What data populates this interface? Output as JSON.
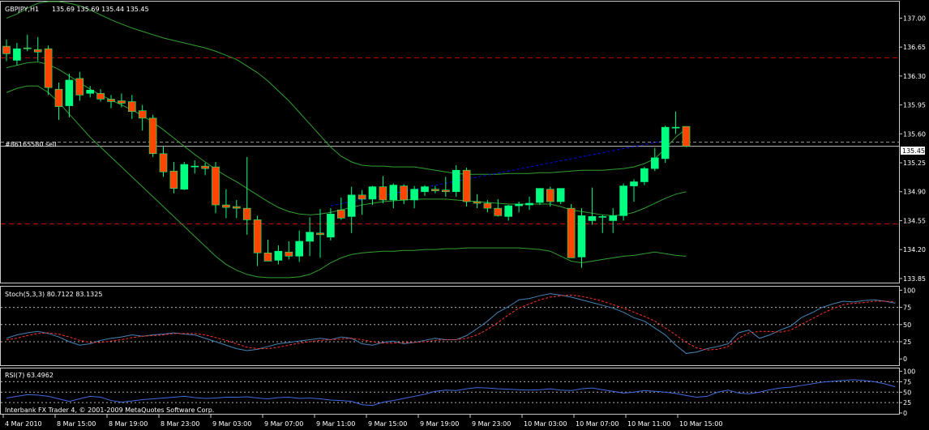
{
  "header": {
    "symbol": "GBPJPY,H1",
    "ohlc": "135.69 135.69 135.44 135.45"
  },
  "order_label": "#86165580 sell",
  "copyright": "Interbank FX Trader 4, © 2001-2009 MetaQuotes Software Corp.",
  "current_price_label": "135.45",
  "colors": {
    "background": "#000000",
    "bull": "#00ff80",
    "bear": "#ff4500",
    "bands": "#30a030",
    "level_lines": "#c80000",
    "stoch_main": "#4682b4",
    "stoch_signal": "#ff3030",
    "rsi": "#4169e1",
    "order": "#0000ff"
  },
  "chart_data": [
    {
      "type": "candlestick",
      "title": "GBPJPY,H1",
      "yticks": [
        "137.00",
        "136.65",
        "136.30",
        "135.95",
        "135.60",
        "135.25",
        "134.90",
        "134.55",
        "134.20",
        "133.85"
      ],
      "ylim": [
        133.8,
        137.2
      ],
      "xticks": [
        "4 Mar 2010",
        "8 Mar 15:00",
        "8 Mar 19:00",
        "8 Mar 23:00",
        "9 Mar 03:00",
        "9 Mar 07:00",
        "9 Mar 11:00",
        "9 Mar 15:00",
        "9 Mar 19:00",
        "9 Mar 23:00",
        "10 Mar 03:00",
        "10 Mar 07:00",
        "10 Mar 11:00",
        "10 Mar 15:00"
      ],
      "candles": [
        {
          "o": 136.66,
          "h": 136.74,
          "l": 136.48,
          "c": 136.57
        },
        {
          "o": 136.49,
          "h": 136.7,
          "l": 136.43,
          "c": 136.63
        },
        {
          "o": 136.64,
          "h": 136.8,
          "l": 136.6,
          "c": 136.63
        },
        {
          "o": 136.62,
          "h": 136.77,
          "l": 136.48,
          "c": 136.59
        },
        {
          "o": 136.63,
          "h": 136.67,
          "l": 136.07,
          "c": 136.16
        },
        {
          "o": 136.14,
          "h": 136.22,
          "l": 135.77,
          "c": 135.93
        },
        {
          "o": 135.94,
          "h": 136.33,
          "l": 135.8,
          "c": 136.25
        },
        {
          "o": 136.27,
          "h": 136.35,
          "l": 136.0,
          "c": 136.07
        },
        {
          "o": 136.09,
          "h": 136.18,
          "l": 136.04,
          "c": 136.13
        },
        {
          "o": 136.09,
          "h": 136.14,
          "l": 135.99,
          "c": 136.02
        },
        {
          "o": 136.02,
          "h": 136.07,
          "l": 135.91,
          "c": 135.99
        },
        {
          "o": 136.0,
          "h": 136.09,
          "l": 135.92,
          "c": 135.97
        },
        {
          "o": 135.99,
          "h": 136.07,
          "l": 135.78,
          "c": 135.87
        },
        {
          "o": 135.88,
          "h": 135.95,
          "l": 135.64,
          "c": 135.79
        },
        {
          "o": 135.79,
          "h": 135.83,
          "l": 135.32,
          "c": 135.36
        },
        {
          "o": 135.36,
          "h": 135.45,
          "l": 135.08,
          "c": 135.14
        },
        {
          "o": 135.15,
          "h": 135.26,
          "l": 134.88,
          "c": 134.94
        },
        {
          "o": 134.93,
          "h": 135.26,
          "l": 134.92,
          "c": 135.23
        },
        {
          "o": 135.2,
          "h": 135.28,
          "l": 135.12,
          "c": 135.21
        },
        {
          "o": 135.21,
          "h": 135.25,
          "l": 135.1,
          "c": 135.18
        },
        {
          "o": 135.2,
          "h": 135.26,
          "l": 134.64,
          "c": 134.74
        },
        {
          "o": 134.74,
          "h": 134.93,
          "l": 134.58,
          "c": 134.71
        },
        {
          "o": 134.72,
          "h": 134.8,
          "l": 134.58,
          "c": 134.7
        },
        {
          "o": 134.7,
          "h": 135.32,
          "l": 134.38,
          "c": 134.56
        },
        {
          "o": 134.56,
          "h": 134.61,
          "l": 134.0,
          "c": 134.16
        },
        {
          "o": 134.16,
          "h": 134.32,
          "l": 134.06,
          "c": 134.06
        },
        {
          "o": 134.07,
          "h": 134.25,
          "l": 134.02,
          "c": 134.18
        },
        {
          "o": 134.17,
          "h": 134.3,
          "l": 134.08,
          "c": 134.12
        },
        {
          "o": 134.12,
          "h": 134.43,
          "l": 134.05,
          "c": 134.3
        },
        {
          "o": 134.3,
          "h": 134.59,
          "l": 134.12,
          "c": 134.41
        },
        {
          "o": 134.4,
          "h": 134.69,
          "l": 134.1,
          "c": 134.38
        },
        {
          "o": 134.35,
          "h": 134.7,
          "l": 134.31,
          "c": 134.63
        },
        {
          "o": 134.68,
          "h": 134.83,
          "l": 134.56,
          "c": 134.58
        },
        {
          "o": 134.6,
          "h": 134.96,
          "l": 134.4,
          "c": 134.86
        },
        {
          "o": 134.86,
          "h": 134.92,
          "l": 134.62,
          "c": 134.81
        },
        {
          "o": 134.81,
          "h": 134.97,
          "l": 134.74,
          "c": 134.96
        },
        {
          "o": 134.96,
          "h": 135.09,
          "l": 134.76,
          "c": 134.8
        },
        {
          "o": 134.8,
          "h": 135.0,
          "l": 134.7,
          "c": 134.98
        },
        {
          "o": 134.97,
          "h": 134.99,
          "l": 134.75,
          "c": 134.8
        },
        {
          "o": 134.8,
          "h": 134.97,
          "l": 134.7,
          "c": 134.93
        },
        {
          "o": 134.9,
          "h": 134.98,
          "l": 134.85,
          "c": 134.96
        },
        {
          "o": 134.93,
          "h": 134.97,
          "l": 134.88,
          "c": 134.91
        },
        {
          "o": 134.92,
          "h": 135.08,
          "l": 134.84,
          "c": 134.9
        },
        {
          "o": 134.9,
          "h": 135.22,
          "l": 134.84,
          "c": 135.16
        },
        {
          "o": 135.16,
          "h": 135.19,
          "l": 134.72,
          "c": 134.78
        },
        {
          "o": 134.78,
          "h": 134.87,
          "l": 134.7,
          "c": 134.76
        },
        {
          "o": 134.76,
          "h": 134.8,
          "l": 134.65,
          "c": 134.7
        },
        {
          "o": 134.7,
          "h": 134.81,
          "l": 134.6,
          "c": 134.61
        },
        {
          "o": 134.6,
          "h": 134.74,
          "l": 134.55,
          "c": 134.73
        },
        {
          "o": 134.73,
          "h": 134.78,
          "l": 134.65,
          "c": 134.75
        },
        {
          "o": 134.74,
          "h": 134.84,
          "l": 134.68,
          "c": 134.76
        },
        {
          "o": 134.77,
          "h": 134.94,
          "l": 134.74,
          "c": 134.94
        },
        {
          "o": 134.93,
          "h": 134.96,
          "l": 134.72,
          "c": 134.78
        },
        {
          "o": 134.78,
          "h": 134.92,
          "l": 134.75,
          "c": 134.94
        },
        {
          "o": 134.7,
          "h": 134.75,
          "l": 134.1,
          "c": 134.1
        },
        {
          "o": 134.11,
          "h": 134.7,
          "l": 133.98,
          "c": 134.61
        },
        {
          "o": 134.55,
          "h": 134.95,
          "l": 134.5,
          "c": 134.6
        },
        {
          "o": 134.59,
          "h": 134.62,
          "l": 134.4,
          "c": 134.6
        },
        {
          "o": 134.55,
          "h": 134.7,
          "l": 134.4,
          "c": 134.61
        },
        {
          "o": 134.61,
          "h": 135.0,
          "l": 134.55,
          "c": 134.97
        },
        {
          "o": 134.97,
          "h": 135.05,
          "l": 134.78,
          "c": 135.02
        },
        {
          "o": 135.02,
          "h": 135.2,
          "l": 134.98,
          "c": 135.18
        },
        {
          "o": 135.18,
          "h": 135.43,
          "l": 135.15,
          "c": 135.31
        },
        {
          "o": 135.3,
          "h": 135.7,
          "l": 135.25,
          "c": 135.68
        },
        {
          "o": 135.68,
          "h": 135.87,
          "l": 135.6,
          "c": 135.68
        },
        {
          "o": 135.69,
          "h": 135.69,
          "l": 135.44,
          "c": 135.45
        }
      ],
      "bollinger": {
        "upper": [
          137.0,
          137.05,
          137.12,
          137.18,
          137.2,
          137.2,
          137.18,
          137.15,
          137.1,
          137.04,
          136.98,
          136.93,
          136.88,
          136.84,
          136.8,
          136.76,
          136.73,
          136.7,
          136.67,
          136.64,
          136.6,
          136.55,
          136.5,
          136.42,
          136.34,
          136.24,
          136.12,
          136.0,
          135.86,
          135.72,
          135.58,
          135.44,
          135.33,
          135.26,
          135.22,
          135.21,
          135.21,
          135.2,
          135.2,
          135.2,
          135.18,
          135.16,
          135.14,
          135.12,
          135.11,
          135.11,
          135.11,
          135.11,
          135.12,
          135.12,
          135.12,
          135.13,
          135.13,
          135.14,
          135.15,
          135.16,
          135.16,
          135.16,
          135.17,
          135.18,
          135.2,
          135.24,
          135.3,
          135.42,
          135.56,
          135.66
        ],
        "middle": [
          136.4,
          136.43,
          136.46,
          136.47,
          136.44,
          136.38,
          136.3,
          136.22,
          136.14,
          136.07,
          136.01,
          135.95,
          135.89,
          135.82,
          135.74,
          135.65,
          135.55,
          135.45,
          135.35,
          135.26,
          135.17,
          135.09,
          135.02,
          134.94,
          134.86,
          134.78,
          134.71,
          134.66,
          134.63,
          134.62,
          134.63,
          134.65,
          134.68,
          134.71,
          134.74,
          134.76,
          134.78,
          134.79,
          134.8,
          134.81,
          134.81,
          134.81,
          134.81,
          134.8,
          134.79,
          134.78,
          134.77,
          134.76,
          134.75,
          134.75,
          134.75,
          134.75,
          134.75,
          134.72,
          134.68,
          134.66,
          134.64,
          134.62,
          134.61,
          134.62,
          134.65,
          134.7,
          134.76,
          134.82,
          134.87,
          134.9
        ],
        "lower": [
          136.1,
          136.15,
          136.18,
          136.18,
          136.1,
          135.98,
          135.84,
          135.7,
          135.56,
          135.44,
          135.32,
          135.2,
          135.08,
          134.96,
          134.84,
          134.72,
          134.6,
          134.48,
          134.36,
          134.24,
          134.12,
          134.02,
          133.95,
          133.9,
          133.87,
          133.86,
          133.86,
          133.86,
          133.87,
          133.9,
          133.96,
          134.04,
          134.1,
          134.14,
          134.16,
          134.17,
          134.18,
          134.18,
          134.19,
          134.19,
          134.2,
          134.2,
          134.21,
          134.21,
          134.22,
          134.22,
          134.22,
          134.22,
          134.22,
          134.22,
          134.21,
          134.2,
          134.18,
          134.12,
          134.06,
          134.04,
          134.06,
          134.08,
          134.1,
          134.12,
          134.13,
          134.15,
          134.17,
          134.15,
          134.13,
          134.12
        ]
      },
      "levels": [
        136.52,
        135.45,
        135.5,
        134.51
      ]
    },
    {
      "type": "line",
      "title": "Stoch(5,3,3) 80.7122 83.1325",
      "yticks": [
        "100",
        "75",
        "50",
        "25",
        "0"
      ],
      "ylim": [
        -8,
        104
      ],
      "series": [
        {
          "values": [
            30,
            35,
            38,
            40,
            37,
            32,
            25,
            20,
            22,
            27,
            30,
            32,
            35,
            33,
            35,
            36,
            38,
            36,
            35,
            30,
            25,
            20,
            15,
            12,
            14,
            18,
            22,
            24,
            26,
            28,
            30,
            28,
            32,
            30,
            22,
            20,
            24,
            26,
            22,
            24,
            27,
            30,
            28,
            28,
            34,
            44,
            55,
            68,
            76,
            86,
            88,
            92,
            95,
            93,
            90,
            86,
            82,
            78,
            74,
            68,
            60,
            55,
            45,
            35,
            20,
            8,
            10,
            15,
            18,
            22,
            38,
            42,
            30,
            35,
            42,
            48,
            60,
            67,
            75,
            80,
            84,
            83,
            85,
            86,
            84,
            81
          ]
        },
        {
          "values": [
            28,
            30,
            34,
            37,
            38,
            36,
            32,
            27,
            24,
            24,
            26,
            28,
            31,
            33,
            34,
            35,
            37,
            37,
            37,
            35,
            31,
            27,
            22,
            17,
            15,
            15,
            17,
            20,
            23,
            25,
            27,
            28,
            29,
            30,
            28,
            25,
            23,
            23,
            24,
            24,
            25,
            27,
            28,
            28,
            30,
            35,
            43,
            53,
            64,
            74,
            80,
            86,
            90,
            92,
            93,
            91,
            88,
            84,
            79,
            74,
            68,
            62,
            55,
            45,
            35,
            24,
            16,
            13,
            14,
            18,
            30,
            38,
            40,
            40,
            39,
            42,
            50,
            58,
            66,
            73,
            79,
            81,
            82,
            84,
            84,
            83
          ]
        }
      ]
    },
    {
      "type": "line",
      "title": "RSI(7) 63.4962",
      "yticks": [
        "100",
        "75",
        "50",
        "25",
        "0"
      ],
      "ylim": [
        0,
        105
      ],
      "series": [
        {
          "values": [
            36,
            40,
            44,
            43,
            40,
            34,
            28,
            34,
            40,
            38,
            30,
            26,
            29,
            32,
            34,
            36,
            38,
            40,
            37,
            35,
            36,
            38,
            38,
            39,
            36,
            34,
            37,
            38,
            35,
            36,
            34,
            31,
            30,
            28,
            20,
            18,
            26,
            30,
            35,
            40,
            45,
            52,
            55,
            54,
            58,
            61,
            60,
            58,
            57,
            56,
            55,
            56,
            58,
            55,
            54,
            58,
            60,
            56,
            52,
            48,
            50,
            54,
            52,
            50,
            47,
            42,
            38,
            40,
            50,
            55,
            48,
            46,
            50,
            56,
            60,
            62,
            66,
            70,
            74,
            76,
            78,
            80,
            78,
            75,
            70,
            63
          ]
        }
      ]
    }
  ]
}
